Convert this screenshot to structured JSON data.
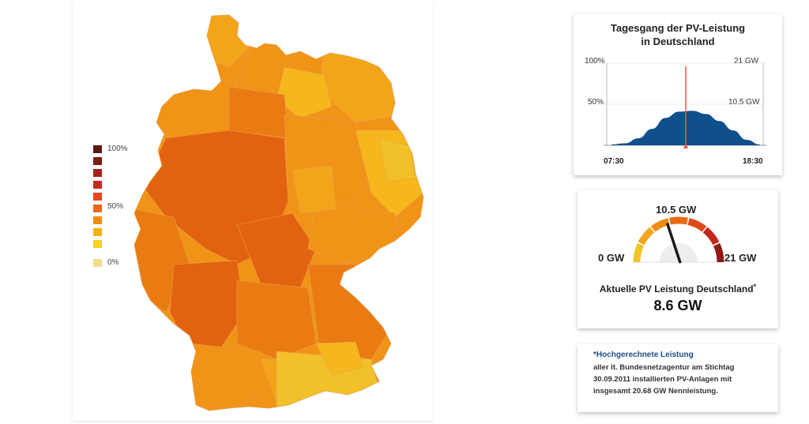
{
  "legend": {
    "label_top": "100%",
    "label_mid": "50%",
    "label_bottom": "0%",
    "colors": [
      "#5a1a12",
      "#7d1d16",
      "#a8201a",
      "#c62a1c",
      "#e24a1c",
      "#ea6a18",
      "#ef8c14",
      "#f5b20f",
      "#f5cf2c",
      "#f5dc8a"
    ]
  },
  "map": {
    "region_colors": [
      "#e2630f",
      "#ea7a12",
      "#f09316",
      "#f3a51a",
      "#f5b71c",
      "#f2c12a"
    ]
  },
  "day_chart": {
    "title_line1": "Tagesgang der PV-Leistung",
    "title_line2": "in Deutschland",
    "left_ticks": [
      "100%",
      "50%"
    ],
    "right_ticks": [
      "21 GW",
      "10.5 GW"
    ],
    "start_time": "07:30",
    "end_time": "18:30",
    "fill_color": "#0f4f8c",
    "marker_color": "#e8584a",
    "chart_data": {
      "type": "area",
      "x": [
        "07:30",
        "08:30",
        "09:30",
        "10:30",
        "11:30",
        "12:30",
        "13:30",
        "14:30",
        "15:30",
        "16:30",
        "17:30",
        "18:30"
      ],
      "y": [
        0.2,
        0.5,
        1.8,
        4.2,
        7.0,
        8.6,
        8.8,
        8.0,
        6.2,
        3.8,
        1.4,
        0.2
      ],
      "xlim": [
        "07:30",
        "18:30"
      ],
      "ylim": [
        0,
        21
      ],
      "y_unit": "GW",
      "current_marker": "13:00"
    }
  },
  "gauge": {
    "top_label": "10.5 GW",
    "min_label": "0 GW",
    "max_label": "21 GW",
    "caption": "Aktuelle PV Leistung Deutschland",
    "caption_mark": "*",
    "current_value": "8.6 GW",
    "value_gw": 8.6,
    "max_gw": 21,
    "segment_colors": [
      "#f3c428",
      "#f1a71c",
      "#ee8c18",
      "#e96a16",
      "#dd4a18",
      "#c2281c",
      "#8e1a16"
    ]
  },
  "note": {
    "heading_mark": "*",
    "heading": "Hochgerechnete Leistung",
    "line1": "aller lt. Bundesnetzagentur am Stichtag",
    "line2": "30.09.2011 installierten PV-Anlagen mit",
    "line3": "insgesamt 20.68 GW Nennleistung."
  }
}
